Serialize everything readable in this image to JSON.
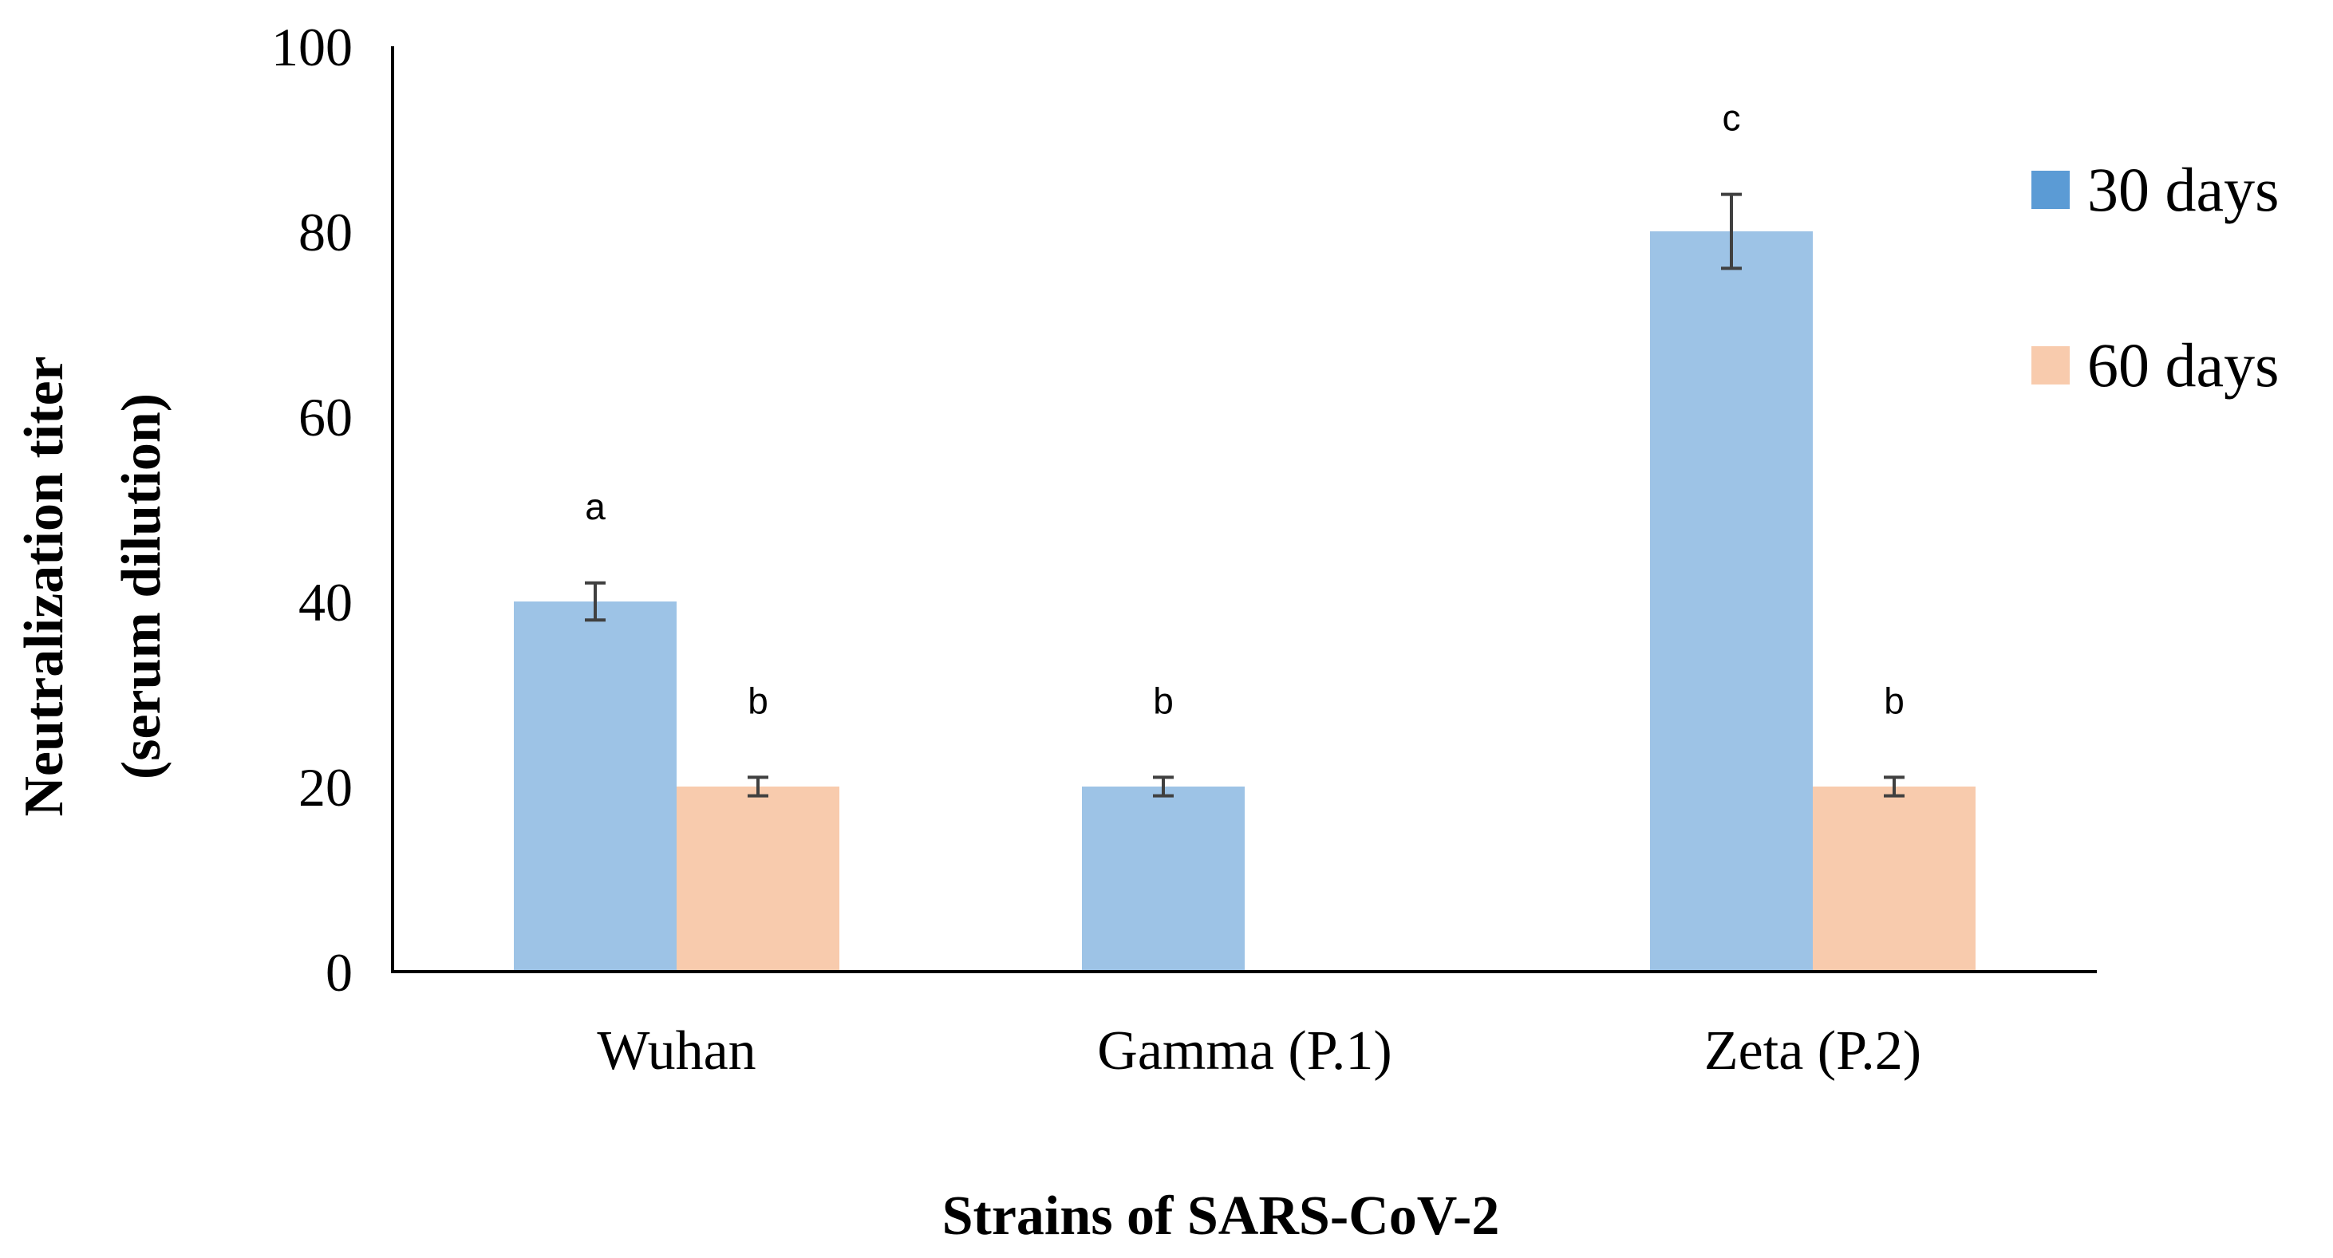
{
  "chart_data": {
    "type": "bar",
    "title": "",
    "xlabel": "Strains of SARS-CoV-2",
    "ylabel_line1": "Neutralization titer",
    "ylabel_line2": "(serum dilution)",
    "ylim": [
      0,
      100
    ],
    "yticks": [
      0,
      20,
      40,
      60,
      80,
      100
    ],
    "ytick_labels": [
      "0",
      "20",
      "40",
      "60",
      "80",
      "100"
    ],
    "categories": [
      "Wuhan",
      "Gamma (P.1)",
      "Zeta (P.2)"
    ],
    "series": [
      {
        "name": "30 days",
        "color": "#9dc3e6",
        "legend_color": "#5b9bd5",
        "values": [
          40,
          20,
          80
        ],
        "errors": [
          2,
          1,
          4
        ],
        "annotations": [
          "a",
          "b",
          "c"
        ]
      },
      {
        "name": "60 days",
        "color": "#f8cbad",
        "legend_color": "#f8cbad",
        "values": [
          20,
          null,
          20
        ],
        "errors": [
          1,
          null,
          1
        ],
        "annotations": [
          "b",
          "",
          "b"
        ]
      }
    ],
    "legend_position": "right",
    "grid": false
  }
}
